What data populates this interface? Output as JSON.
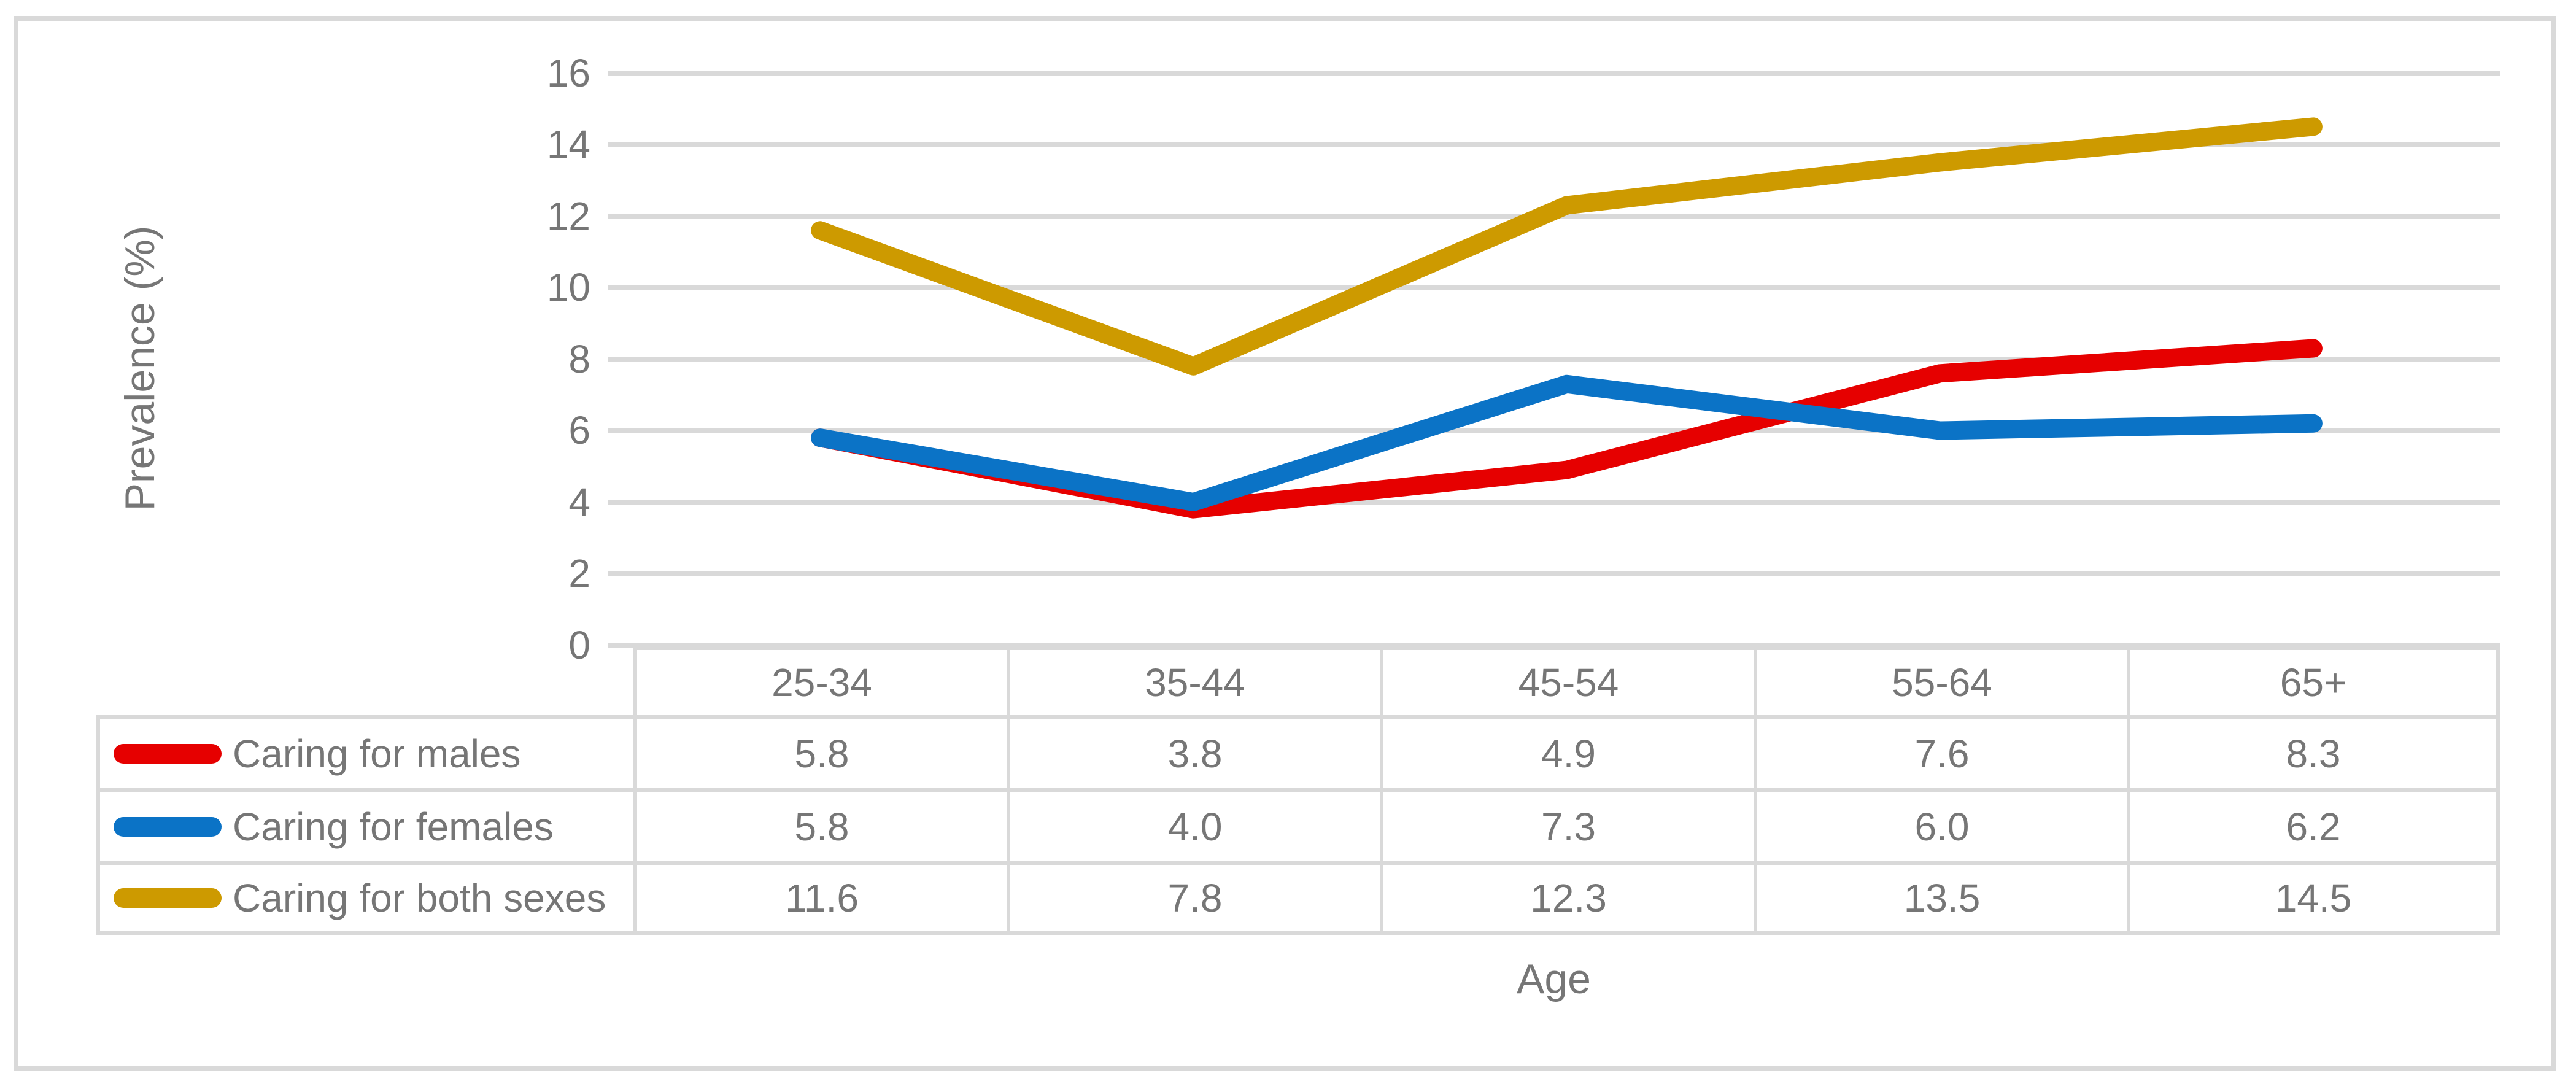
{
  "figure": {
    "background_color": "#ffffff",
    "border_color": "#d9d9d9",
    "text_color": "#767676",
    "gridline_color": "#d9d9d9"
  },
  "chart_data": {
    "type": "line",
    "title": "",
    "xlabel": "Age",
    "ylabel": "Prevalence (%)",
    "ylim": [
      0,
      16
    ],
    "ytick_step": 2,
    "yticks_top_to_bottom": [
      "16",
      "14",
      "12",
      "10",
      "8",
      "6",
      "4",
      "2",
      "0"
    ],
    "grid": "horizontal-only",
    "legend_position": "table-left",
    "categories": [
      "25-34",
      "35-44",
      "45-54",
      "55-64",
      "65+"
    ],
    "series": [
      {
        "name": "Caring for males",
        "color": "#e60000",
        "values": [
          5.8,
          3.8,
          4.9,
          7.6,
          8.3
        ],
        "values_text": [
          "5.8",
          "3.8",
          "4.9",
          "7.6",
          "8.3"
        ]
      },
      {
        "name": "Caring for females",
        "color": "#0b73c6",
        "values": [
          5.8,
          4.0,
          7.3,
          6.0,
          6.2
        ],
        "values_text": [
          "5.8",
          "4.0",
          "7.3",
          "6.0",
          "6.2"
        ]
      },
      {
        "name": "Caring for both sexes",
        "color": "#cd9a00",
        "values": [
          11.6,
          7.8,
          12.3,
          13.5,
          14.5
        ],
        "values_text": [
          "11.6",
          "7.8",
          "12.3",
          "13.5",
          "14.5"
        ]
      }
    ]
  }
}
